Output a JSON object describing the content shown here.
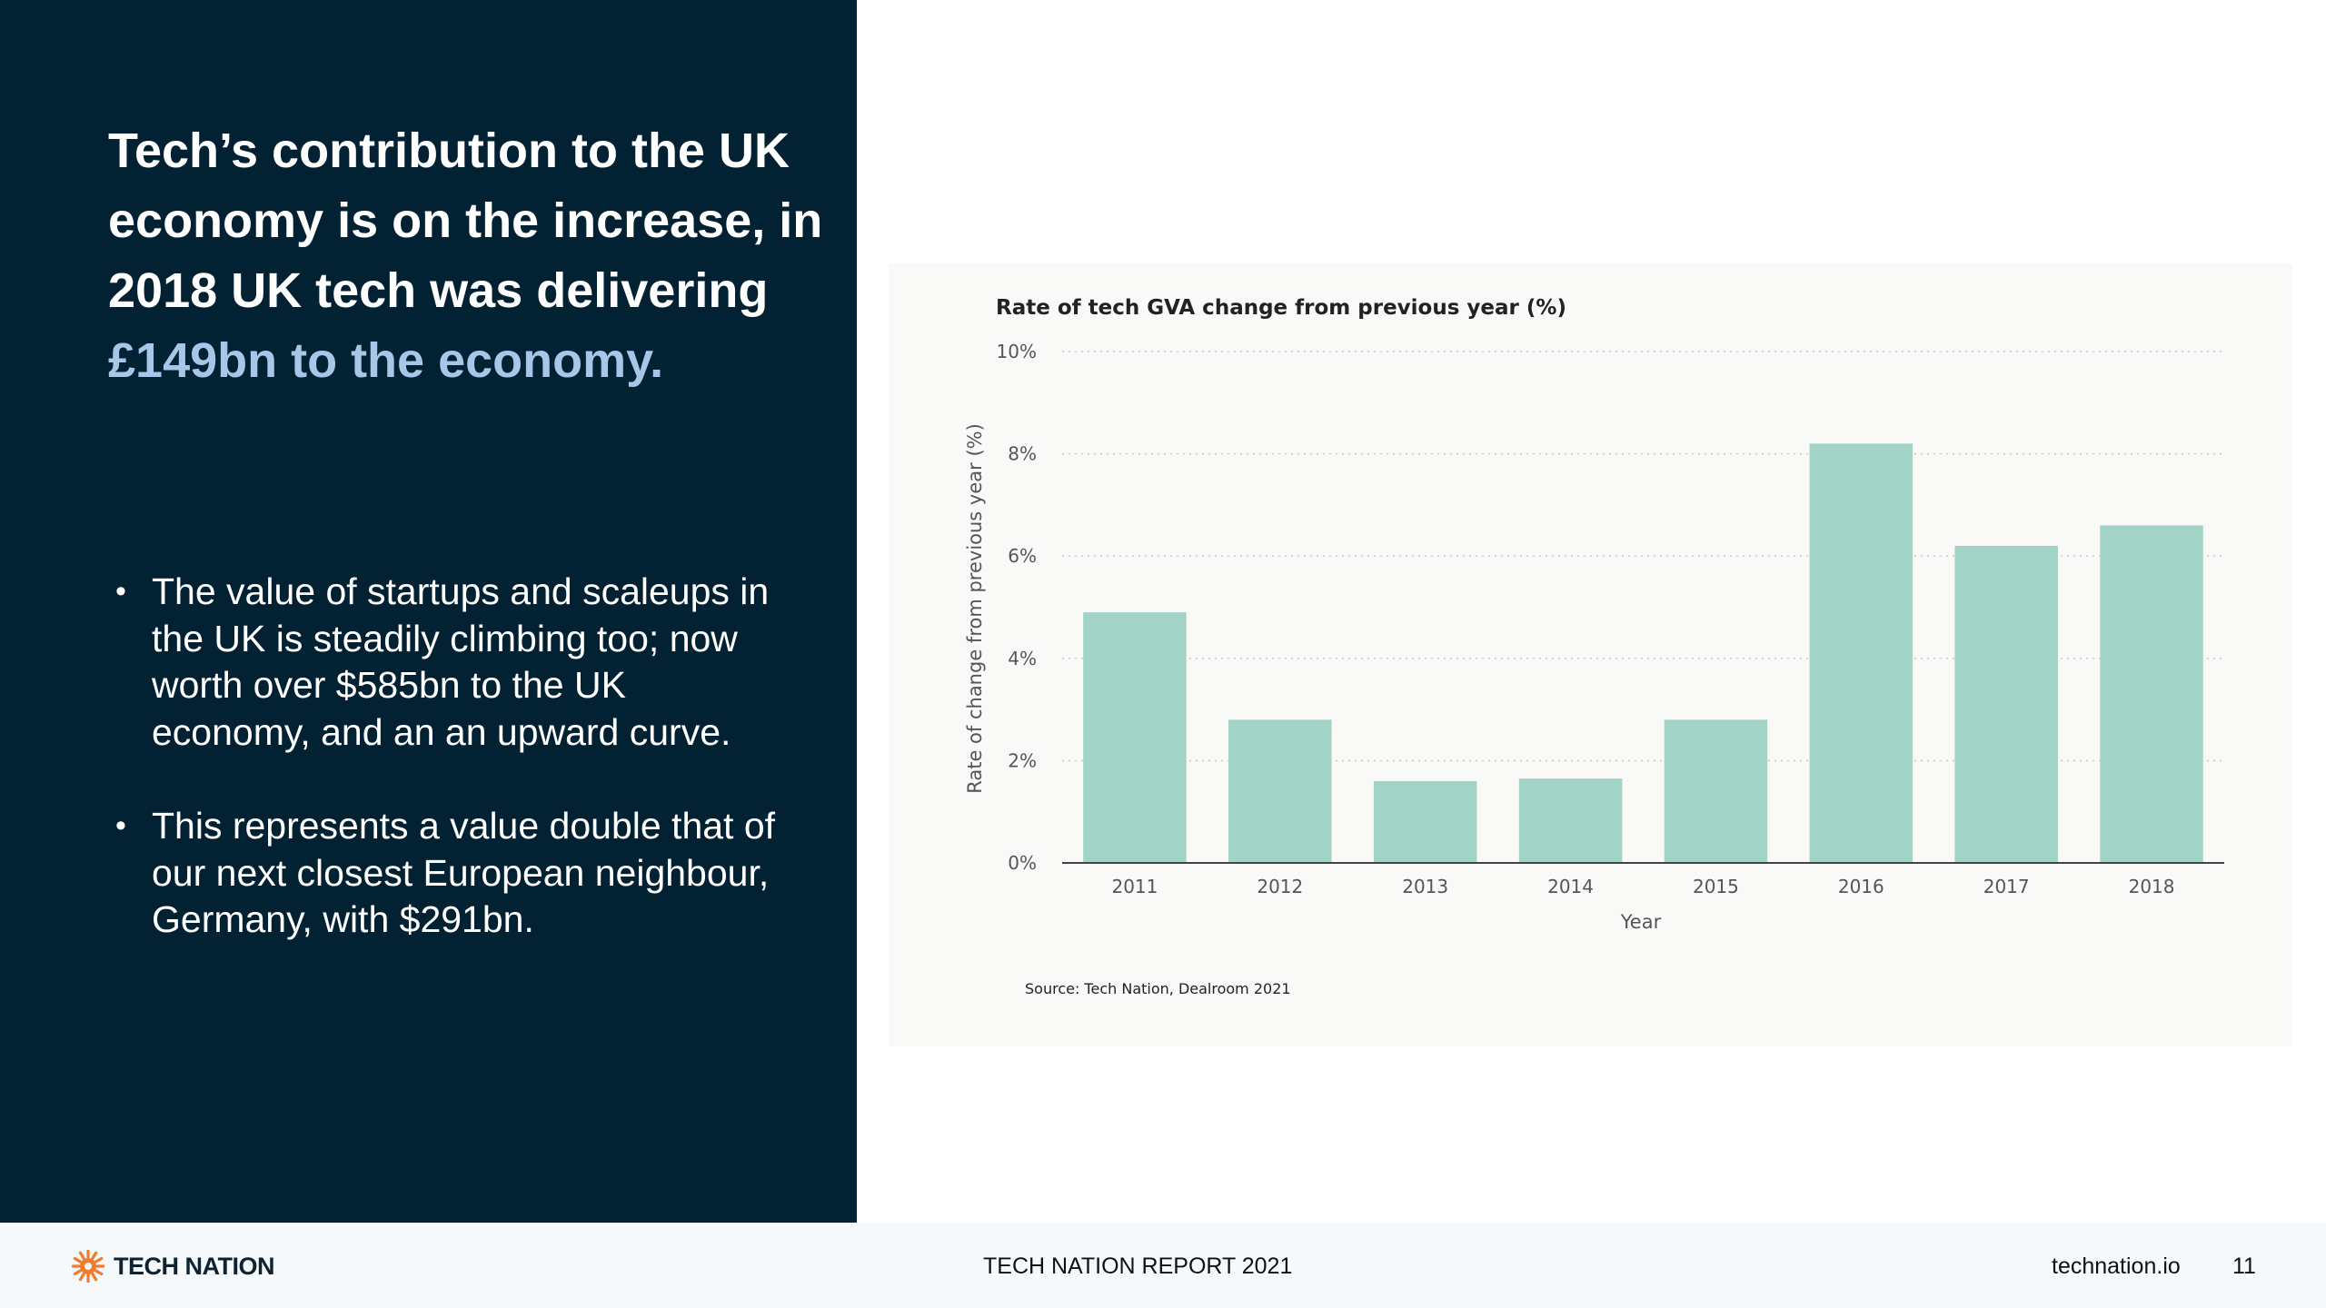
{
  "headline": {
    "lead": "Tech’s contribution to the UK economy is on the increase, in 2018 UK tech was delivering ",
    "highlight": "£149bn to the economy."
  },
  "bullets": [
    "The value of startups and scaleups in the UK is steadily climbing too; now worth over $585bn to the UK economy, and an an upward curve.",
    "This represents a value double that of our next closest European neighbour, Germany, with $291bn."
  ],
  "footer": {
    "brand": "TECH NATION",
    "report_title": "TECH NATION REPORT 2021",
    "site": "technation.io",
    "page_number": "11"
  },
  "colors": {
    "panel_background": "#022233",
    "highlight_text": "#a8c6e8",
    "bar": "#a3d3c7",
    "logo": "#f07b2a"
  },
  "icons": {
    "logo": "sunburst-logo-icon"
  },
  "chart_data": {
    "type": "bar",
    "title": "Rate of tech GVA change from previous year (%)",
    "xlabel": "Year",
    "ylabel": "Rate of change from previous year (%)",
    "categories": [
      "2011",
      "2012",
      "2013",
      "2014",
      "2015",
      "2016",
      "2017",
      "2018"
    ],
    "values": [
      4.9,
      2.8,
      1.6,
      1.65,
      2.8,
      8.2,
      6.2,
      6.6
    ],
    "ylim": [
      0,
      10
    ],
    "yticks": [
      0,
      2,
      4,
      6,
      8,
      10
    ],
    "ytick_labels": [
      "0%",
      "2%",
      "4%",
      "6%",
      "8%",
      "10%"
    ],
    "grid": true,
    "source": "Source: Tech Nation, Dealroom 2021"
  }
}
